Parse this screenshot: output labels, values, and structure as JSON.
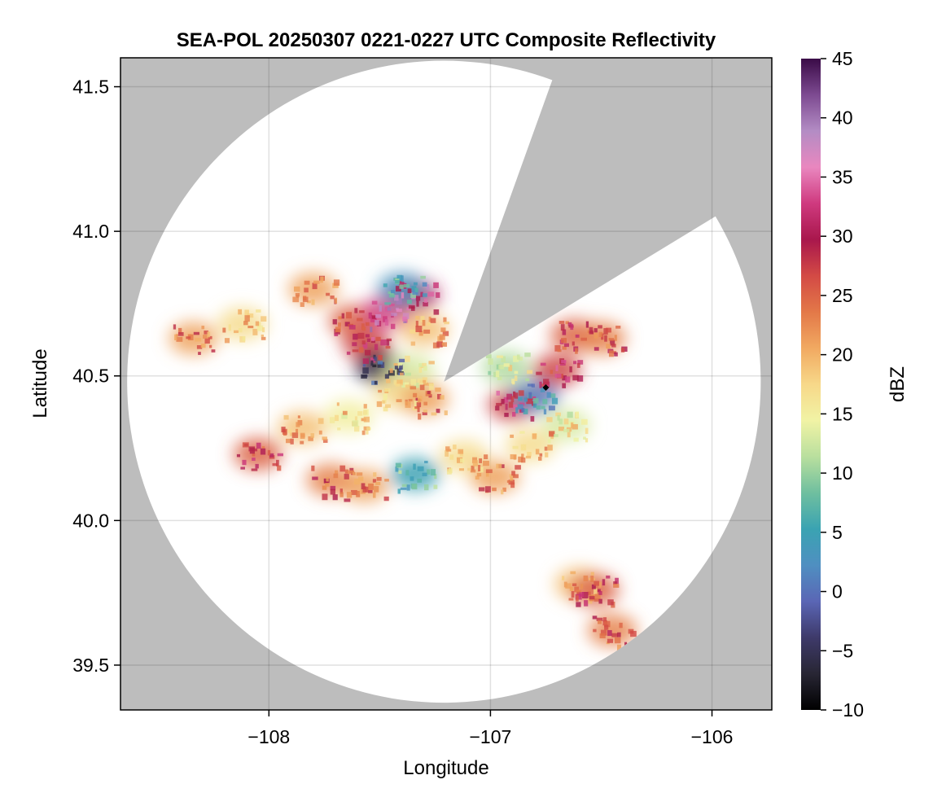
{
  "chart_data": {
    "type": "heatmap",
    "title": "SEA-POL 20250307 0221-0227 UTC Composite Reflectivity",
    "xlabel": "Longitude",
    "ylabel": "Latitude",
    "xlim": [
      -108.67,
      -105.73
    ],
    "ylim": [
      39.345,
      41.6
    ],
    "xticks": [
      -108,
      -107,
      -106
    ],
    "xtick_labels": [
      "−108",
      "−107",
      "−106"
    ],
    "yticks": [
      39.5,
      40.0,
      40.5,
      41.0,
      41.5
    ],
    "ytick_labels": [
      "39.5",
      "40.0",
      "40.5",
      "41.0",
      "41.5"
    ],
    "grid": true,
    "background_color": "#bdbdbd",
    "radar": {
      "center": [
        -107.21,
        40.48
      ],
      "range_lon": 1.43,
      "range_lat": 1.11,
      "blocked_sector_deg": [
        20,
        59
      ]
    },
    "colorbar": {
      "label": "dBZ",
      "min": -10,
      "max": 45,
      "ticks": [
        -10,
        -5,
        0,
        5,
        10,
        15,
        20,
        25,
        30,
        35,
        40,
        45
      ],
      "tick_labels": [
        "−10",
        "−5",
        "0",
        "5",
        "10",
        "15",
        "20",
        "25",
        "30",
        "35",
        "40",
        "45"
      ],
      "colormap": "reversed spectral-style (black → purple → blue → teal → green → yellow → orange → red → crimson → pink → violet → dark purple)",
      "palette": [
        "#000000",
        "#282634",
        "#3e3a6a",
        "#5a66b5",
        "#4f8fc1",
        "#3aa3b2",
        "#6fbf9f",
        "#b9df9e",
        "#f1f3a5",
        "#f7d889",
        "#f1a961",
        "#e37848",
        "#d34a45",
        "#a9174c",
        "#cf3a7f",
        "#e987bf",
        "#b38cc4",
        "#7d4a91",
        "#3a0b47"
      ]
    },
    "echoes": [
      {
        "lon": -107.62,
        "lat": 40.69,
        "dbz": 28
      },
      {
        "lon": -107.47,
        "lat": 40.72,
        "dbz": 36
      },
      {
        "lon": -107.34,
        "lat": 40.78,
        "dbz": 34
      },
      {
        "lon": -107.56,
        "lat": 40.61,
        "dbz": 30
      },
      {
        "lon": -107.5,
        "lat": 40.53,
        "dbz": -3
      },
      {
        "lon": -107.36,
        "lat": 40.52,
        "dbz": 16
      },
      {
        "lon": -107.42,
        "lat": 40.44,
        "dbz": 20
      },
      {
        "lon": -107.3,
        "lat": 40.42,
        "dbz": 24
      },
      {
        "lon": -107.4,
        "lat": 40.8,
        "dbz": 6
      },
      {
        "lon": -107.3,
        "lat": 40.66,
        "dbz": 22
      },
      {
        "lon": -107.64,
        "lat": 40.36,
        "dbz": 18
      },
      {
        "lon": -107.8,
        "lat": 40.8,
        "dbz": 24
      },
      {
        "lon": -108.34,
        "lat": 40.63,
        "dbz": 24
      },
      {
        "lon": -108.12,
        "lat": 40.68,
        "dbz": 20
      },
      {
        "lon": -108.05,
        "lat": 40.23,
        "dbz": 28
      },
      {
        "lon": -107.85,
        "lat": 40.32,
        "dbz": 22
      },
      {
        "lon": -107.72,
        "lat": 40.14,
        "dbz": 26
      },
      {
        "lon": -107.57,
        "lat": 40.12,
        "dbz": 24
      },
      {
        "lon": -107.34,
        "lat": 40.16,
        "dbz": 8
      },
      {
        "lon": -107.12,
        "lat": 40.22,
        "dbz": 20
      },
      {
        "lon": -106.98,
        "lat": 40.15,
        "dbz": 24
      },
      {
        "lon": -106.9,
        "lat": 40.4,
        "dbz": 30
      },
      {
        "lon": -106.93,
        "lat": 40.53,
        "dbz": 14
      },
      {
        "lon": -106.8,
        "lat": 40.43,
        "dbz": 4
      },
      {
        "lon": -106.82,
        "lat": 40.26,
        "dbz": 20
      },
      {
        "lon": -106.7,
        "lat": 40.52,
        "dbz": 30
      },
      {
        "lon": -106.62,
        "lat": 40.64,
        "dbz": 28
      },
      {
        "lon": -106.5,
        "lat": 40.63,
        "dbz": 26
      },
      {
        "lon": -106.66,
        "lat": 40.33,
        "dbz": 16
      },
      {
        "lon": -106.6,
        "lat": 39.78,
        "dbz": 22
      },
      {
        "lon": -106.53,
        "lat": 39.76,
        "dbz": 28
      },
      {
        "lon": -106.45,
        "lat": 39.62,
        "dbz": 26
      }
    ],
    "marker": {
      "lon": -106.75,
      "lat": 40.46,
      "shape": "diamond"
    }
  }
}
